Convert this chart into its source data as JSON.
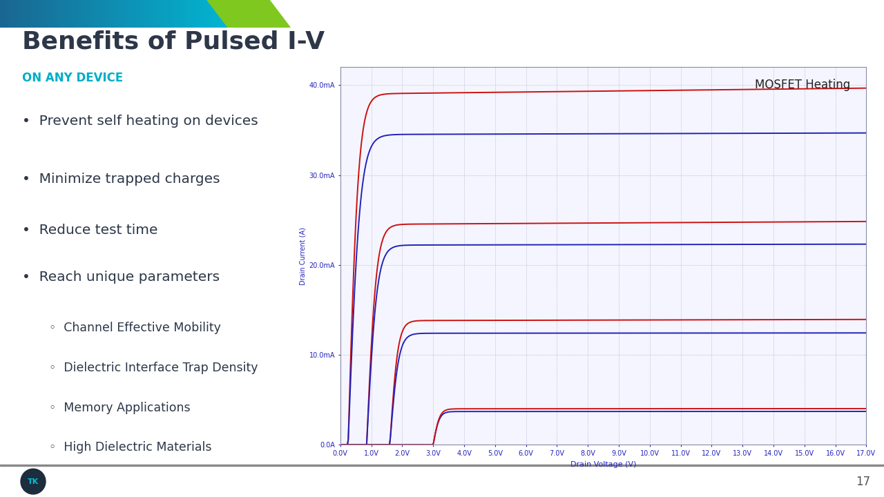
{
  "title": "Benefits of Pulsed I-V",
  "subtitle": "ON ANY DEVICE",
  "title_color": "#2d3748",
  "subtitle_color": "#00aec9",
  "background_color": "#ffffff",
  "bullet_points": [
    "Prevent self heating on devices",
    "Minimize trapped charges",
    "Reduce test time",
    "Reach unique parameters"
  ],
  "sub_bullets": [
    "Channel Effective Mobility",
    "Dielectric Interface Trap Density",
    "Memory Applications",
    "High Dielectric Materials"
  ],
  "chart_title": "MOSFET Heating",
  "xlabel": "Drain Voltage (V)",
  "ylabel": "Drain Current (A)",
  "x_ticks": [
    0,
    1,
    2,
    3,
    4,
    5,
    6,
    7,
    8,
    9,
    10,
    11,
    12,
    13,
    14,
    15,
    16,
    17
  ],
  "x_tick_labels": [
    "0.0V",
    "1.0V",
    "2.0V",
    "3.0V",
    "4.0V",
    "5.0V",
    "6.0V",
    "7.0V",
    "8.0V",
    "9.0V",
    "10.0V",
    "11.0V",
    "12.0V",
    "13.0V",
    "14.0V",
    "15.0V",
    "16.0V",
    "17.0V"
  ],
  "y_ticks": [
    0.0,
    0.01,
    0.02,
    0.03,
    0.04
  ],
  "y_tick_labels": [
    "0.0A",
    "10.0mA",
    "20.0mA",
    "30.0mA",
    "40.0mA"
  ],
  "ylim": [
    0,
    0.042
  ],
  "xlim": [
    0,
    17
  ],
  "red_color": "#cc1111",
  "blue_color": "#2222bb",
  "grid_color": "#9999bb",
  "chart_bg": "#f5f5ff",
  "page_number": "17",
  "footer_line_color": "#888888",
  "footer_text_color": "#555555",
  "logo_color": "#1a9db8",
  "header_blue_start": "#1a6690",
  "header_blue_end": "#00bcd8",
  "header_green": "#7ec820"
}
